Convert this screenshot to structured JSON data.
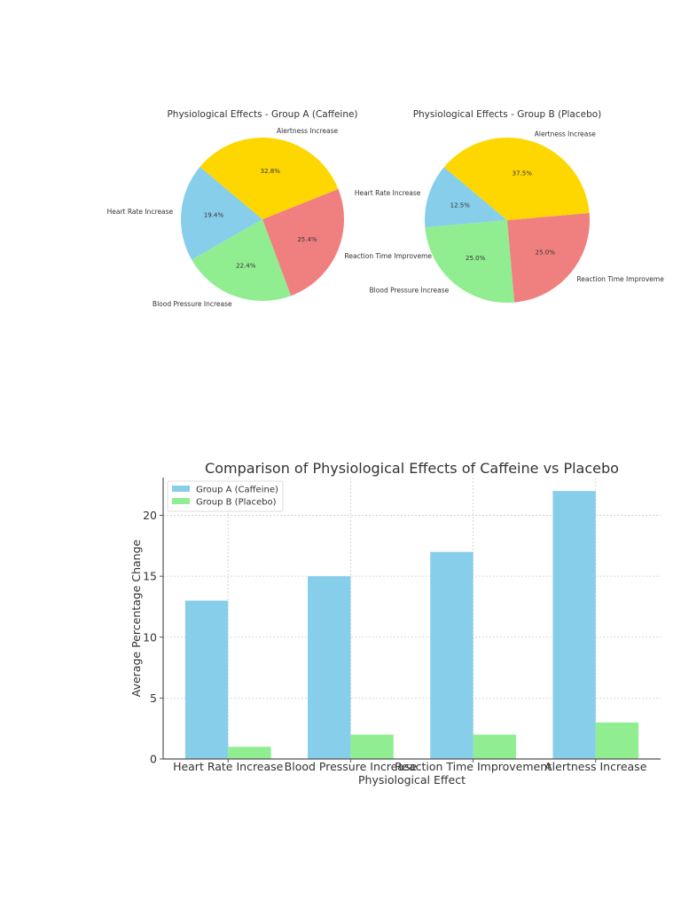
{
  "chart_data": [
    {
      "type": "pie",
      "title": "Physiological Effects - Group A (Caffeine)",
      "labels": [
        "Heart Rate Increase",
        "Blood Pressure Increase",
        "Reaction Time Improveme",
        "Alertness Increase"
      ],
      "values": [
        13,
        15,
        17,
        22
      ],
      "percent_labels": [
        "19.4%",
        "22.4%",
        "25.4%",
        "32.8%"
      ],
      "colors": [
        "#87ceeb",
        "#90ee90",
        "#f08080",
        "#ffd700"
      ],
      "start_angle": 140
    },
    {
      "type": "pie",
      "title": "Physiological Effects - Group B (Placebo)",
      "labels": [
        "Heart Rate Increase",
        "Blood Pressure Increase",
        "Reaction Time Improveme",
        "Alertness Increase"
      ],
      "values": [
        1,
        2,
        2,
        3
      ],
      "percent_labels": [
        "12.5%",
        "25.0%",
        "25.0%",
        "37.5%"
      ],
      "colors": [
        "#87ceeb",
        "#90ee90",
        "#f08080",
        "#ffd700"
      ],
      "start_angle": 140
    },
    {
      "type": "bar",
      "title": "Comparison of Physiological Effects of Caffeine vs Placebo",
      "xlabel": "Physiological Effect",
      "ylabel": "Average Percentage Change",
      "categories": [
        "Heart Rate Increase",
        "Blood Pressure Increase",
        "Reaction Time Improvement",
        "Alertness Increase"
      ],
      "series": [
        {
          "name": "Group A (Caffeine)",
          "values": [
            13,
            15,
            17,
            22
          ],
          "color": "#87ceeb"
        },
        {
          "name": "Group B (Placebo)",
          "values": [
            1,
            2,
            2,
            3
          ],
          "color": "#90ee90"
        }
      ],
      "ylim": [
        0,
        23.1
      ],
      "yticks": [
        0,
        5,
        10,
        15,
        20
      ],
      "grid": true,
      "legend": "upper-left"
    }
  ]
}
